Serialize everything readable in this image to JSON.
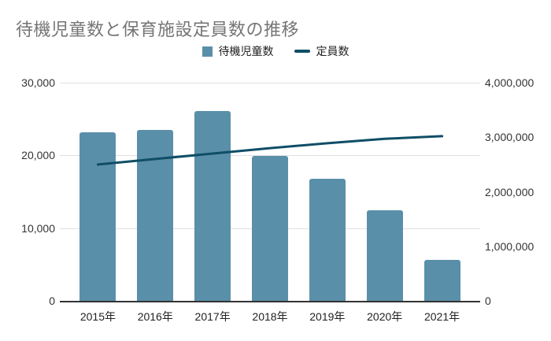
{
  "title": "待機児童数と保育施設定員数の推移",
  "colors": {
    "background": "#ffffff",
    "bar": "#5a8fa9",
    "line": "#0f4e66",
    "title_text": "#757575",
    "axis_label_text": "#333333",
    "gridline": "#e0e0e0",
    "axis_line": "#333333"
  },
  "chart_data": {
    "type": "combo bar+line, dual y-axis",
    "title": "待機児童数と保育施設定員数の推移",
    "categories": [
      "2015年",
      "2016年",
      "2017年",
      "2018年",
      "2019年",
      "2020年",
      "2021年"
    ],
    "series": [
      {
        "name": "待機児童数",
        "type": "bar",
        "y_axis": "left",
        "color": "#5a8fa9",
        "values": [
          23167,
          23553,
          26081,
          19895,
          16772,
          12439,
          5634
        ]
      },
      {
        "name": "定員数",
        "type": "line",
        "y_axis": "right",
        "color": "#0f4e66",
        "values": [
          2500000,
          2600000,
          2700000,
          2800000,
          2890000,
          2970000,
          3020000
        ]
      }
    ],
    "left_axis": {
      "min": 0,
      "max": 30000,
      "tick_values": [
        0,
        10000,
        20000,
        30000
      ],
      "tick_labels": [
        "0",
        "10,000",
        "20,000",
        "30,000"
      ]
    },
    "right_axis": {
      "min": 0,
      "max": 4000000,
      "tick_values": [
        0,
        1000000,
        2000000,
        3000000,
        4000000
      ],
      "tick_labels": [
        "0",
        "1,000,000",
        "2,000,000",
        "3,000,000",
        "4,000,000"
      ]
    },
    "grid": "horizontal gridlines at left-axis ticks",
    "legend_position": "top-center"
  }
}
